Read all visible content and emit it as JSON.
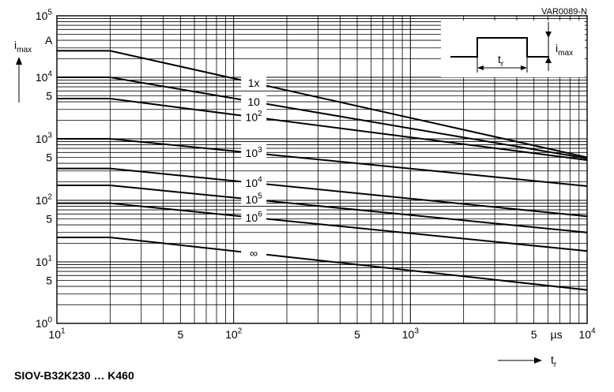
{
  "chart_data": {
    "type": "line",
    "x_scale": "log",
    "y_scale": "log",
    "xlim": [
      10,
      10000
    ],
    "ylim": [
      1,
      100000
    ],
    "x_tick_labels": [
      {
        "value": 10,
        "base": "10",
        "exp": "1"
      },
      {
        "value": 50,
        "base": "5",
        "exp": ""
      },
      {
        "value": 100,
        "base": "10",
        "exp": "2"
      },
      {
        "value": 500,
        "base": "5",
        "exp": ""
      },
      {
        "value": 1000,
        "base": "10",
        "exp": "3"
      },
      {
        "value": 5000,
        "base": "5",
        "exp": ""
      },
      {
        "value": 10000,
        "base": "10",
        "exp": "4"
      }
    ],
    "y_tick_labels": [
      {
        "value": 1,
        "base": "10",
        "exp": "0"
      },
      {
        "value": 5,
        "base": "5",
        "exp": ""
      },
      {
        "value": 10,
        "base": "10",
        "exp": "1"
      },
      {
        "value": 50,
        "base": "5",
        "exp": ""
      },
      {
        "value": 100,
        "base": "10",
        "exp": "2"
      },
      {
        "value": 500,
        "base": "5",
        "exp": ""
      },
      {
        "value": 1000,
        "base": "10",
        "exp": "3"
      },
      {
        "value": 5000,
        "base": "5",
        "exp": ""
      },
      {
        "value": 10000,
        "base": "10",
        "exp": "4"
      },
      {
        "value": 100000,
        "base": "10",
        "exp": "5"
      }
    ],
    "x_unit_label": "µs",
    "xlabel": {
      "base": "t",
      "sub": "r"
    },
    "ylabel": {
      "base": "i",
      "sub": "max",
      "unit": "A"
    },
    "series": [
      {
        "label_base": "1x",
        "label_exp": "",
        "label_x": 130,
        "points": [
          [
            10,
            27000
          ],
          [
            20,
            27000
          ],
          [
            10000,
            500
          ]
        ]
      },
      {
        "label_base": "10",
        "label_exp": "",
        "label_x": 130,
        "points": [
          [
            10,
            10000
          ],
          [
            20,
            10000
          ],
          [
            10000,
            480
          ]
        ]
      },
      {
        "label_base": "10",
        "label_exp": "2",
        "label_x": 130,
        "points": [
          [
            10,
            4500
          ],
          [
            20,
            4500
          ],
          [
            10000,
            450
          ]
        ]
      },
      {
        "label_base": "10",
        "label_exp": "3",
        "label_x": 130,
        "points": [
          [
            10,
            1000
          ],
          [
            20,
            1000
          ],
          [
            10000,
            170
          ]
        ]
      },
      {
        "label_base": "10",
        "label_exp": "4",
        "label_x": 130,
        "points": [
          [
            10,
            330
          ],
          [
            20,
            330
          ],
          [
            10000,
            55
          ]
        ]
      },
      {
        "label_base": "10",
        "label_exp": "5",
        "label_x": 130,
        "points": [
          [
            10,
            175
          ],
          [
            20,
            175
          ],
          [
            10000,
            30
          ]
        ]
      },
      {
        "label_base": "10",
        "label_exp": "6",
        "label_x": 130,
        "points": [
          [
            10,
            90
          ],
          [
            20,
            90
          ],
          [
            10000,
            15
          ]
        ]
      },
      {
        "label_base": "∞",
        "label_exp": "",
        "label_x": 130,
        "points": [
          [
            10,
            25
          ],
          [
            20,
            25
          ],
          [
            10000,
            3.5
          ]
        ]
      }
    ],
    "inset": {
      "label_pulse_width": "t",
      "label_pulse_width_sub": "r",
      "label_amplitude": "i",
      "label_amplitude_sub": "max"
    }
  },
  "figure_id": "VAR0089-N",
  "caption": "SIOV-B32K230 … K460"
}
